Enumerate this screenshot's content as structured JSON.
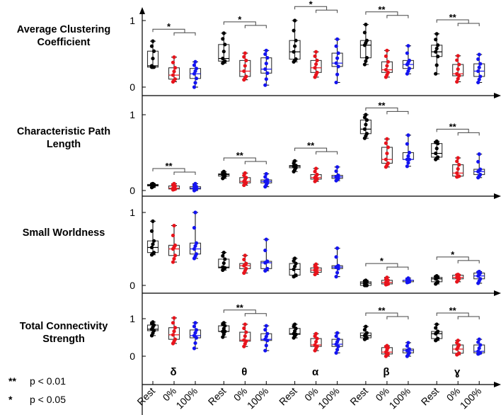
{
  "chart_data": {
    "type": "box",
    "groups": [
      "δ",
      "θ",
      "α",
      "β",
      "ɣ"
    ],
    "conditions": [
      "Rest",
      "0%",
      "100%"
    ],
    "condition_colors": [
      "#000000",
      "#e8141c",
      "#1414f0"
    ],
    "ytick_labels": [
      "0",
      "1"
    ],
    "legend": [
      {
        "marker": "**",
        "label": "p < 0.01"
      },
      {
        "marker": "*",
        "label": "p < 0.05"
      }
    ],
    "panels": [
      {
        "title": "Average Clustering Coefficient",
        "ylim": [
          0,
          1
        ],
        "boxes": [
          [
            [
              0.3,
              0.3,
              0.32,
              0.54,
              0.69
            ],
            [
              0.08,
              0.12,
              0.18,
              0.29,
              0.45
            ],
            [
              0.0,
              0.13,
              0.2,
              0.28,
              0.38
            ]
          ],
          [
            [
              0.36,
              0.39,
              0.43,
              0.64,
              0.81
            ],
            [
              0.11,
              0.16,
              0.24,
              0.4,
              0.51
            ],
            [
              0.03,
              0.21,
              0.27,
              0.44,
              0.55
            ]
          ],
          [
            [
              0.38,
              0.42,
              0.53,
              0.7,
              1.0
            ],
            [
              0.15,
              0.22,
              0.29,
              0.4,
              0.53
            ],
            [
              0.07,
              0.31,
              0.36,
              0.51,
              0.72
            ]
          ],
          [
            [
              0.34,
              0.44,
              0.63,
              0.7,
              0.94
            ],
            [
              0.15,
              0.22,
              0.26,
              0.38,
              0.55
            ],
            [
              0.2,
              0.28,
              0.34,
              0.4,
              0.62
            ]
          ],
          [
            [
              0.2,
              0.46,
              0.53,
              0.63,
              0.8
            ],
            [
              0.08,
              0.17,
              0.2,
              0.34,
              0.47
            ],
            [
              0.07,
              0.16,
              0.24,
              0.35,
              0.49
            ]
          ]
        ],
        "significance": [
          {
            "group": 0,
            "marker": "*",
            "level": 0.87
          },
          {
            "group": 1,
            "marker": "*",
            "level": 0.98
          },
          {
            "group": 2,
            "marker": "*",
            "level": 1.21
          },
          {
            "group": 3,
            "marker": "**",
            "level": 1.13
          },
          {
            "group": 4,
            "marker": "**",
            "level": 1.01
          }
        ]
      },
      {
        "title": "Characteristic Path Length",
        "ylim": [
          0,
          1
        ],
        "boxes": [
          [
            [
              0.04,
              0.06,
              0.07,
              0.08,
              0.09
            ],
            [
              0.01,
              0.02,
              0.03,
              0.06,
              0.09
            ],
            [
              0.0,
              0.02,
              0.03,
              0.05,
              0.09
            ]
          ],
          [
            [
              0.16,
              0.19,
              0.21,
              0.22,
              0.25
            ],
            [
              0.07,
              0.1,
              0.12,
              0.17,
              0.23
            ],
            [
              0.05,
              0.1,
              0.12,
              0.14,
              0.22
            ]
          ],
          [
            [
              0.25,
              0.3,
              0.32,
              0.33,
              0.39
            ],
            [
              0.12,
              0.15,
              0.17,
              0.21,
              0.29
            ],
            [
              0.13,
              0.16,
              0.18,
              0.2,
              0.31
            ]
          ],
          [
            [
              0.69,
              0.75,
              0.81,
              0.93,
              1.0
            ],
            [
              0.31,
              0.36,
              0.41,
              0.57,
              0.68
            ],
            [
              0.32,
              0.41,
              0.41,
              0.5,
              0.73
            ]
          ],
          [
            [
              0.41,
              0.44,
              0.49,
              0.62,
              0.65
            ],
            [
              0.18,
              0.19,
              0.23,
              0.34,
              0.43
            ],
            [
              0.17,
              0.21,
              0.25,
              0.28,
              0.48
            ]
          ]
        ],
        "significance": [
          {
            "group": 0,
            "marker": "**",
            "level": 0.29
          },
          {
            "group": 1,
            "marker": "**",
            "level": 0.43
          },
          {
            "group": 2,
            "marker": "**",
            "level": 0.56
          },
          {
            "group": 3,
            "marker": "**",
            "level": 1.09
          },
          {
            "group": 4,
            "marker": "**",
            "level": 0.81
          }
        ]
      },
      {
        "title": "Small Worldness",
        "ylim": [
          0,
          1
        ],
        "boxes": [
          [
            [
              0.42,
              0.45,
              0.52,
              0.61,
              0.88
            ],
            [
              0.32,
              0.41,
              0.5,
              0.55,
              0.82
            ],
            [
              0.37,
              0.43,
              0.5,
              0.58,
              1.0
            ]
          ],
          [
            [
              0.21,
              0.24,
              0.25,
              0.36,
              0.45
            ],
            [
              0.17,
              0.23,
              0.27,
              0.3,
              0.41
            ],
            [
              0.2,
              0.23,
              0.31,
              0.33,
              0.63
            ]
          ],
          [
            [
              0.12,
              0.14,
              0.22,
              0.3,
              0.37
            ],
            [
              0.15,
              0.18,
              0.21,
              0.24,
              0.29
            ],
            [
              0.12,
              0.23,
              0.25,
              0.27,
              0.51
            ]
          ],
          [
            [
              0.0,
              0.0,
              0.03,
              0.05,
              0.07
            ],
            [
              0.01,
              0.02,
              0.04,
              0.07,
              0.11
            ],
            [
              0.04,
              0.05,
              0.07,
              0.07,
              0.1
            ]
          ],
          [
            [
              0.02,
              0.05,
              0.09,
              0.11,
              0.13
            ],
            [
              0.05,
              0.09,
              0.11,
              0.14,
              0.15
            ],
            [
              0.03,
              0.09,
              0.13,
              0.17,
              0.19
            ]
          ]
        ],
        "significance": [
          {
            "group": 3,
            "marker": "*",
            "level": 0.3
          },
          {
            "group": 4,
            "marker": "*",
            "level": 0.39
          }
        ]
      },
      {
        "title": "Total Connectivity Strength",
        "ylim": [
          0,
          1
        ],
        "boxes": [
          [
            [
              0.55,
              0.68,
              0.72,
              0.83,
              0.91
            ],
            [
              0.34,
              0.45,
              0.57,
              0.76,
              1.02
            ],
            [
              0.21,
              0.49,
              0.55,
              0.7,
              0.89
            ]
          ],
          [
            [
              0.51,
              0.66,
              0.66,
              0.81,
              0.89
            ],
            [
              0.26,
              0.4,
              0.43,
              0.64,
              0.85
            ],
            [
              0.15,
              0.42,
              0.45,
              0.6,
              0.81
            ]
          ],
          [
            [
              0.49,
              0.58,
              0.6,
              0.74,
              0.85
            ],
            [
              0.15,
              0.26,
              0.3,
              0.47,
              0.6
            ],
            [
              0.09,
              0.26,
              0.32,
              0.45,
              0.62
            ]
          ],
          [
            [
              0.45,
              0.49,
              0.55,
              0.62,
              0.79
            ],
            [
              0.0,
              0.06,
              0.11,
              0.23,
              0.28
            ],
            [
              0.0,
              0.09,
              0.15,
              0.19,
              0.36
            ]
          ],
          [
            [
              0.42,
              0.47,
              0.6,
              0.66,
              0.85
            ],
            [
              0.04,
              0.08,
              0.19,
              0.3,
              0.42
            ],
            [
              0.06,
              0.09,
              0.13,
              0.3,
              0.45
            ]
          ]
        ],
        "significance": [
          {
            "group": 1,
            "marker": "**",
            "level": 1.23
          },
          {
            "group": 3,
            "marker": "**",
            "level": 1.15
          },
          {
            "group": 4,
            "marker": "**",
            "level": 1.15
          }
        ]
      }
    ]
  }
}
